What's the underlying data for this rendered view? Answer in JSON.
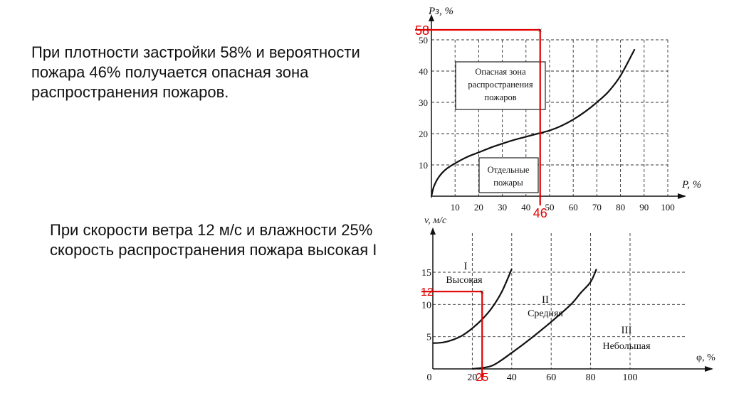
{
  "text": {
    "paragraph1": [
      "При плотности застройки 58% и вероятности",
      "пожара 46% получается опасная зона",
      "распространения пожаров."
    ],
    "paragraph2": [
      "При скорости ветра 12 м/с и влажности 25%",
      "скорость распространения пожара высокая I"
    ]
  },
  "chart_data": [
    {
      "type": "line",
      "ylabel": "Pз, %",
      "xlabel": "P, %",
      "xlim": [
        0,
        100
      ],
      "ylim": [
        0,
        50
      ],
      "x_ticks": [
        10,
        20,
        30,
        40,
        50,
        60,
        70,
        80,
        90,
        100
      ],
      "y_ticks": [
        10,
        20,
        30,
        40,
        50
      ],
      "grid": true,
      "series": [
        {
          "x": [
            0,
            1,
            3,
            6,
            10,
            15,
            20,
            25,
            30,
            35,
            40,
            45,
            50,
            55,
            60,
            65,
            70,
            75,
            80,
            86
          ],
          "y": [
            0,
            3,
            6,
            8.5,
            10.5,
            12.5,
            14,
            15.5,
            16.8,
            18,
            19,
            20,
            21,
            22.5,
            24.5,
            27,
            30,
            33.5,
            38.5,
            47
          ]
        }
      ],
      "annotations": [
        {
          "lines": [
            "Опасная зона",
            "распространения",
            "пожаров"
          ]
        },
        {
          "lines": [
            "Отдельные",
            "пожары"
          ]
        }
      ],
      "marker": {
        "x": 46,
        "y": 58,
        "x_label": "46",
        "y_label": "58",
        "color": "#e00000"
      }
    },
    {
      "type": "line",
      "ylabel": "v, м/с",
      "xlabel": "φ, %",
      "xlim": [
        0,
        100
      ],
      "ylim": [
        0,
        15
      ],
      "x_ticks": [
        0,
        20,
        40,
        60,
        80,
        100
      ],
      "y_ticks": [
        5,
        10,
        15
      ],
      "grid": true,
      "series": [
        {
          "x": [
            0,
            5,
            10,
            15,
            20,
            25,
            30,
            35,
            40
          ],
          "y": [
            4,
            4.1,
            4.5,
            5.2,
            6.3,
            7.7,
            9.5,
            12,
            15.5
          ]
        },
        {
          "x": [
            20,
            30,
            40,
            50,
            60,
            70,
            75,
            80,
            83
          ],
          "y": [
            0,
            0.5,
            2.5,
            4.8,
            7.3,
            10,
            11.8,
            13.5,
            15.5
          ]
        }
      ],
      "region_labels": [
        {
          "lines": [
            "I",
            "Высокая"
          ]
        },
        {
          "lines": [
            "II",
            "Средняя"
          ]
        },
        {
          "lines": [
            "III",
            "Небольшая"
          ]
        }
      ],
      "marker": {
        "x": 25,
        "y": 12,
        "x_label": "25",
        "y_label": "12",
        "color": "#e00000"
      }
    }
  ]
}
